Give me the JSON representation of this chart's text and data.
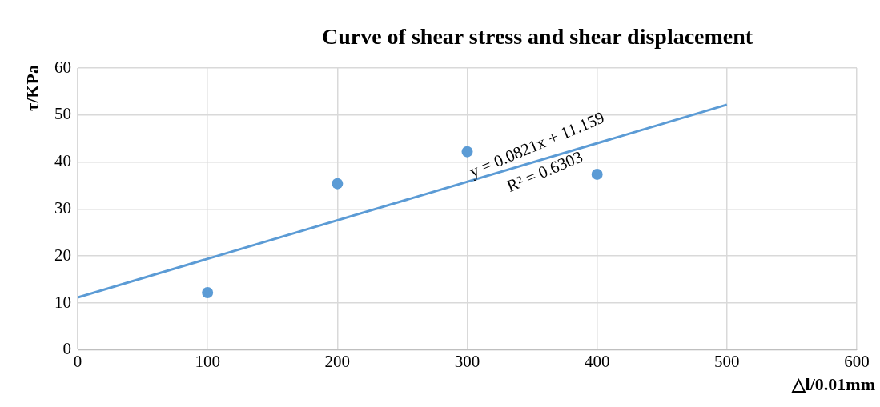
{
  "chart_data": {
    "type": "scatter",
    "title": "Curve of shear stress and shear displacement",
    "xlabel": "△l/0.01mm",
    "ylabel": "τ/KPa",
    "xlim": [
      0,
      600
    ],
    "xticks": [
      0,
      100,
      200,
      300,
      400,
      500,
      600
    ],
    "ylim": [
      0,
      60
    ],
    "yticks": [
      0,
      10,
      20,
      30,
      40,
      50,
      60
    ],
    "grid": true,
    "legend": false,
    "marker": "circle",
    "series": [
      {
        "type": "scatter",
        "color": "#5b9bd5",
        "x": [
          100,
          200,
          300,
          400
        ],
        "values": [
          12.2,
          35.4,
          42.2,
          37.4
        ]
      },
      {
        "type": "line",
        "color": "#5b9bd5",
        "x": [
          0,
          500
        ],
        "values": [
          11.2,
          52.2
        ],
        "line_style": "solid",
        "marker": "none"
      }
    ],
    "annotations": [
      "y = 0.0821x + 11.159",
      "R² = 0.6303"
    ]
  }
}
